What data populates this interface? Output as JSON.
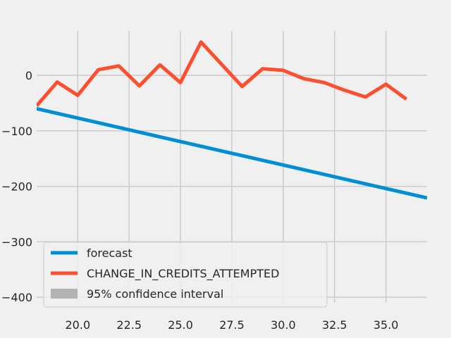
{
  "chart_data": {
    "type": "line",
    "title": "",
    "xlabel": "",
    "ylabel": "",
    "xlim": [
      18.0,
      37.0
    ],
    "ylim": [
      -410,
      80
    ],
    "x_ticks": [
      20.0,
      22.5,
      25.0,
      27.5,
      30.0,
      32.5,
      35.0
    ],
    "x_tick_labels": [
      "20.0",
      "22.5",
      "25.0",
      "27.5",
      "30.0",
      "32.5",
      "35.0"
    ],
    "y_ticks": [
      0,
      -100,
      -200,
      -300,
      -400
    ],
    "y_tick_labels": [
      "0",
      "−100",
      "−200",
      "−300",
      "−400"
    ],
    "grid": true,
    "legend_position": "lower-left",
    "series": [
      {
        "name": "forecast",
        "color": "#008fd5",
        "x": [
          18,
          37
        ],
        "y": [
          -60,
          -221
        ]
      },
      {
        "name": "CHANGE_IN_CREDITS_ATTEMPTED",
        "color": "#fc4f30",
        "x": [
          18,
          19,
          20,
          21,
          22,
          23,
          24,
          25,
          26,
          27,
          28,
          29,
          30,
          31,
          32,
          33,
          34,
          35,
          36
        ],
        "y": [
          -55,
          -12,
          -36,
          10,
          17,
          -19,
          19,
          -13,
          60,
          20,
          -20,
          12,
          9,
          -6,
          -13,
          -27,
          -39,
          -16,
          -43
        ]
      }
    ],
    "legend": [
      {
        "label": "forecast",
        "color": "#008fd5",
        "kind": "line"
      },
      {
        "label": "CHANGE_IN_CREDITS_ATTEMPTED",
        "color": "#fc4f30",
        "kind": "line"
      },
      {
        "label": "95% confidence interval",
        "color": "#b3b3b3",
        "kind": "patch"
      }
    ]
  }
}
